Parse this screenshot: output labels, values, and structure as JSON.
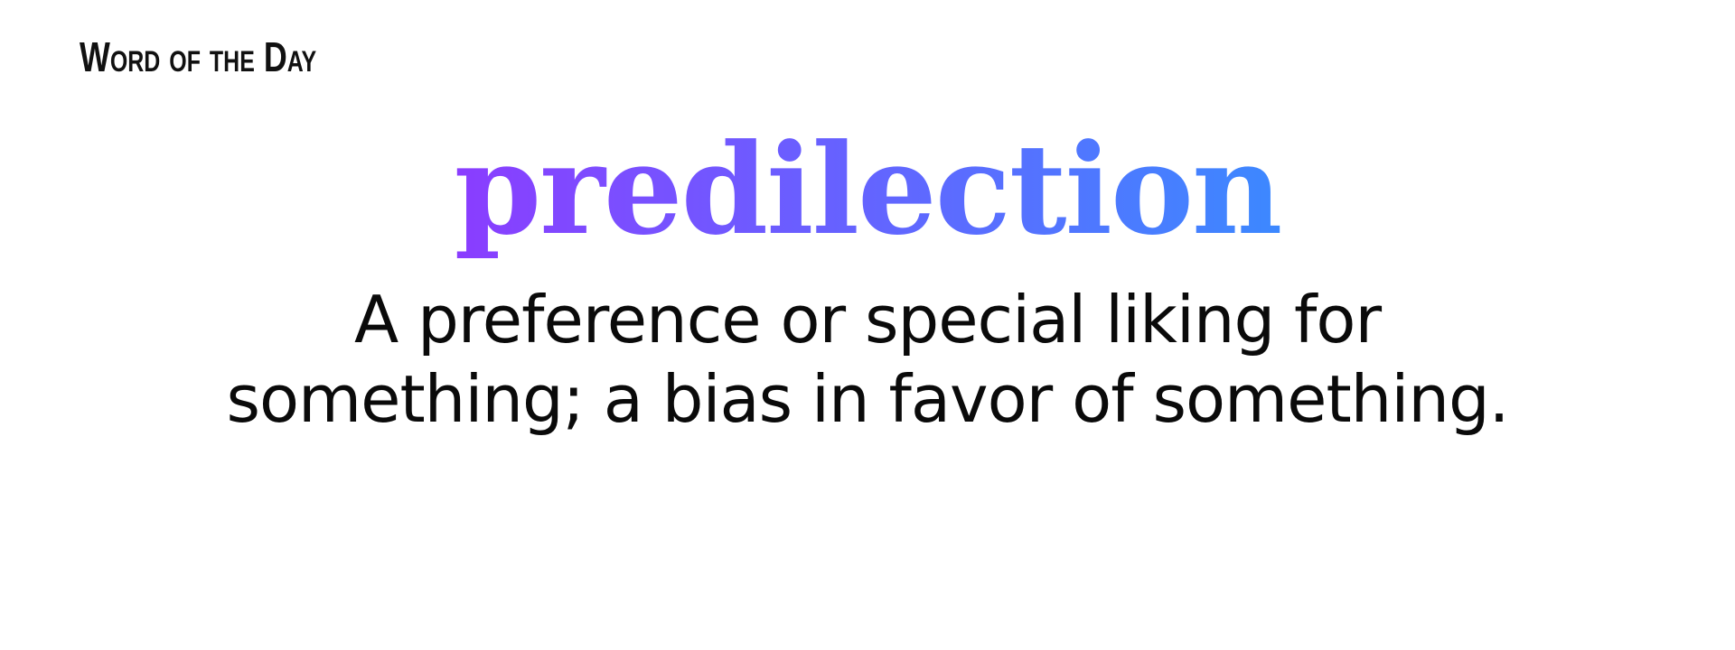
{
  "header": {
    "label": "Word of the Day"
  },
  "entry": {
    "word": "predilection",
    "definition_line_1": "A preference or special liking for",
    "definition_line_2": "something; a bias in favor of something."
  },
  "colors": {
    "background": "#ffffff",
    "text": "#0a0a0a",
    "gradient_start": "#b40bff",
    "gradient_end": "#10b0ff"
  }
}
